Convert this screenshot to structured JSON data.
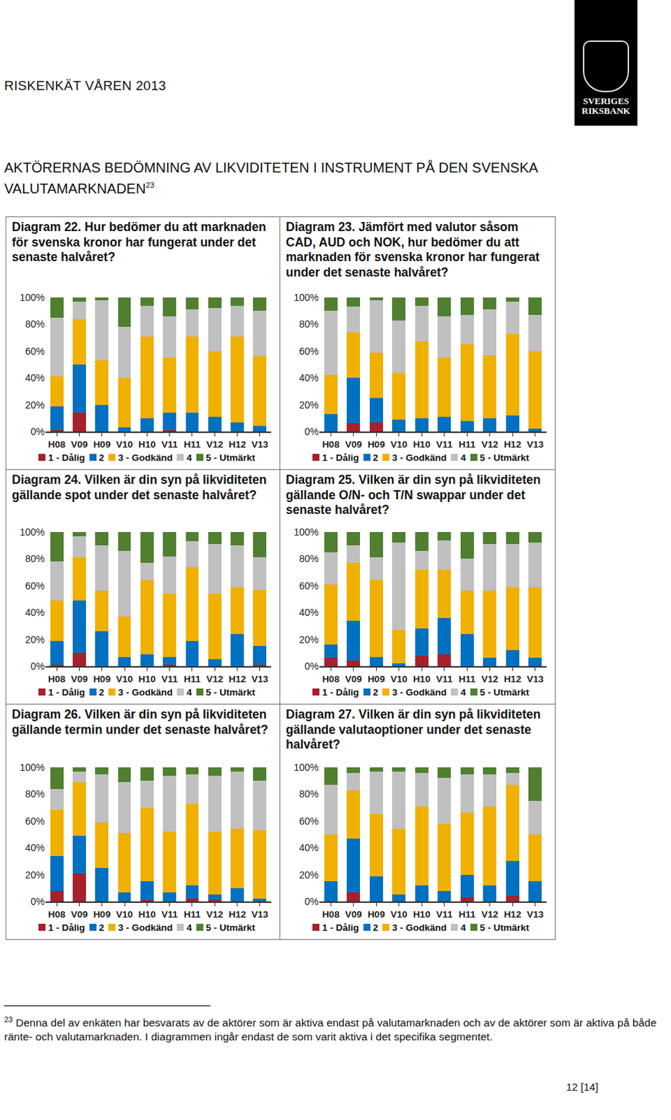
{
  "page": {
    "header": "RISKENKÄT VÅREN 2013",
    "logo": [
      "SVERIGES",
      "RIKSBANK"
    ],
    "section_title": "AKTÖRERNAS BEDÖMNING AV LIKVIDITETEN I INSTRUMENT PÅ DEN SVENSKA VALUTAMARKNADEN",
    "section_note_ref": "23",
    "footnote": {
      "ref": "23",
      "text": "Denna del av enkäten har besvarats av de aktörer som är aktiva endast på valutamarknaden och av de aktörer som är aktiva på både ränte- och valutamarknaden. I diagrammen ingår endast de som varit aktiva i det specifika segmentet."
    },
    "page_number": "12 [14]"
  },
  "chart_data": [
    {
      "type": "bar",
      "stacked": true,
      "grid": false,
      "legend": "bottom",
      "title": "Diagram 22. Hur bedömer du att marknaden för svenska kronor har fungerat under det senaste halvåret?",
      "categories": [
        "H08",
        "V09",
        "H09",
        "V10",
        "H10",
        "V11",
        "H11",
        "V12",
        "H12",
        "V13"
      ],
      "ylim": [
        0,
        100
      ],
      "yticks": [
        {
          "value": 0,
          "label": "0%"
        },
        {
          "value": 20,
          "label": "20%"
        },
        {
          "value": 40,
          "label": "40%"
        },
        {
          "value": 60,
          "label": "60%"
        },
        {
          "value": 80,
          "label": "80%"
        },
        {
          "value": 100,
          "label": "100%"
        }
      ],
      "series": [
        {
          "name": "1 - Dålig",
          "color": "#a6212b",
          "values": [
            1,
            14,
            0,
            0,
            0,
            1,
            0,
            0,
            0,
            0
          ]
        },
        {
          "name": "2",
          "color": "#0070c0",
          "values": [
            18,
            36,
            20,
            3,
            10,
            13,
            14,
            11,
            7,
            4
          ]
        },
        {
          "name": "3 - Godkänd",
          "color": "#f0b000",
          "values": [
            22,
            34,
            33,
            37,
            61,
            41,
            57,
            49,
            64,
            52
          ]
        },
        {
          "name": "4",
          "color": "#c0c0c0",
          "values": [
            44,
            13,
            45,
            38,
            23,
            31,
            20,
            32,
            23,
            34
          ]
        },
        {
          "name": "5 - Utmärkt",
          "color": "#4f7f2f",
          "values": [
            15,
            3,
            2,
            22,
            6,
            14,
            9,
            8,
            6,
            10
          ]
        }
      ]
    },
    {
      "type": "bar",
      "stacked": true,
      "grid": false,
      "legend": "bottom",
      "title": "Diagram 23. Jämfört med valutor såsom CAD, AUD och NOK, hur bedömer du att marknaden för svenska kronor har fungerat under det senaste halvåret?",
      "categories": [
        "H08",
        "V09",
        "H09",
        "V10",
        "H10",
        "V11",
        "H11",
        "V12",
        "H12",
        "V13"
      ],
      "ylim": [
        0,
        100
      ],
      "yticks": [
        {
          "value": 0,
          "label": "0%"
        },
        {
          "value": 20,
          "label": "20%"
        },
        {
          "value": 40,
          "label": "40%"
        },
        {
          "value": 60,
          "label": "60%"
        },
        {
          "value": 80,
          "label": "80%"
        },
        {
          "value": 100,
          "label": "100%"
        }
      ],
      "series": [
        {
          "name": "1 - Dålig",
          "color": "#a6212b",
          "values": [
            0,
            6,
            7,
            0,
            0,
            0,
            0,
            0,
            0,
            0
          ]
        },
        {
          "name": "2",
          "color": "#0070c0",
          "values": [
            13,
            34,
            18,
            9,
            10,
            11,
            8,
            10,
            12,
            2
          ]
        },
        {
          "name": "3 - Godkänd",
          "color": "#f0b000",
          "values": [
            29,
            34,
            34,
            35,
            57,
            44,
            57,
            47,
            61,
            58
          ]
        },
        {
          "name": "4",
          "color": "#c0c0c0",
          "values": [
            48,
            19,
            39,
            39,
            27,
            31,
            22,
            34,
            24,
            27
          ]
        },
        {
          "name": "5 - Utmärkt",
          "color": "#4f7f2f",
          "values": [
            10,
            7,
            2,
            17,
            6,
            14,
            13,
            9,
            3,
            13
          ]
        }
      ]
    },
    {
      "type": "bar",
      "stacked": true,
      "grid": false,
      "legend": "bottom",
      "title": "Diagram 24. Vilken är din syn på likviditeten gällande spot under det senaste halvåret?",
      "categories": [
        "H08",
        "V09",
        "H09",
        "V10",
        "H10",
        "V11",
        "H11",
        "V12",
        "H12",
        "V13"
      ],
      "ylim": [
        0,
        100
      ],
      "yticks": [
        {
          "value": 0,
          "label": "0%"
        },
        {
          "value": 20,
          "label": "20%"
        },
        {
          "value": 40,
          "label": "40%"
        },
        {
          "value": 60,
          "label": "60%"
        },
        {
          "value": 80,
          "label": "80%"
        },
        {
          "value": 100,
          "label": "100%"
        }
      ],
      "series": [
        {
          "name": "1 - Dålig",
          "color": "#a6212b",
          "values": [
            1,
            10,
            0,
            0,
            0,
            1,
            0,
            0,
            0,
            1
          ]
        },
        {
          "name": "2",
          "color": "#0070c0",
          "values": [
            18,
            39,
            26,
            7,
            9,
            6,
            19,
            5,
            24,
            14
          ]
        },
        {
          "name": "3 - Godkänd",
          "color": "#f0b000",
          "values": [
            30,
            32,
            30,
            30,
            55,
            47,
            55,
            49,
            35,
            42
          ]
        },
        {
          "name": "4",
          "color": "#c0c0c0",
          "values": [
            29,
            16,
            34,
            49,
            13,
            28,
            19,
            37,
            31,
            24
          ]
        },
        {
          "name": "5 - Utmärkt",
          "color": "#4f7f2f",
          "values": [
            22,
            3,
            10,
            14,
            23,
            18,
            7,
            9,
            10,
            19
          ]
        }
      ]
    },
    {
      "type": "bar",
      "stacked": true,
      "grid": false,
      "legend": "bottom",
      "title": "Diagram 25. Vilken är din syn på likviditeten gällande O/N- och T/N swappar under det senaste halvåret?",
      "categories": [
        "H08",
        "V09",
        "H09",
        "V10",
        "H10",
        "V11",
        "H11",
        "V12",
        "H12",
        "V13"
      ],
      "ylim": [
        0,
        100
      ],
      "yticks": [
        {
          "value": 0,
          "label": "0%"
        },
        {
          "value": 20,
          "label": "20%"
        },
        {
          "value": 40,
          "label": "40%"
        },
        {
          "value": 60,
          "label": "60%"
        },
        {
          "value": 80,
          "label": "80%"
        },
        {
          "value": 100,
          "label": "100%"
        }
      ],
      "series": [
        {
          "name": "1 - Dålig",
          "color": "#a6212b",
          "values": [
            6,
            4,
            0,
            0,
            8,
            9,
            0,
            0,
            0,
            0
          ]
        },
        {
          "name": "2",
          "color": "#0070c0",
          "values": [
            10,
            30,
            7,
            2,
            20,
            27,
            24,
            6,
            12,
            6
          ]
        },
        {
          "name": "3 - Godkänd",
          "color": "#f0b000",
          "values": [
            45,
            43,
            57,
            25,
            44,
            36,
            32,
            50,
            47,
            53
          ]
        },
        {
          "name": "4",
          "color": "#c0c0c0",
          "values": [
            24,
            13,
            17,
            65,
            14,
            22,
            24,
            35,
            32,
            33
          ]
        },
        {
          "name": "5 - Utmärkt",
          "color": "#4f7f2f",
          "values": [
            15,
            10,
            19,
            8,
            14,
            6,
            20,
            9,
            9,
            8
          ]
        }
      ]
    },
    {
      "type": "bar",
      "stacked": true,
      "grid": false,
      "legend": "bottom",
      "title": "Diagram 26. Vilken är din syn på likviditeten gällande termin under det senaste halvåret?",
      "categories": [
        "H08",
        "V09",
        "H09",
        "V10",
        "H10",
        "V11",
        "H11",
        "V12",
        "H12",
        "V13"
      ],
      "ylim": [
        0,
        100
      ],
      "yticks": [
        {
          "value": 0,
          "label": "0%"
        },
        {
          "value": 20,
          "label": "20%"
        },
        {
          "value": 40,
          "label": "40%"
        },
        {
          "value": 60,
          "label": "60%"
        },
        {
          "value": 80,
          "label": "80%"
        },
        {
          "value": 100,
          "label": "100%"
        }
      ],
      "series": [
        {
          "name": "1 - Dålig",
          "color": "#a6212b",
          "values": [
            8,
            21,
            0,
            0,
            1,
            0,
            2,
            1,
            0,
            0
          ]
        },
        {
          "name": "2",
          "color": "#0070c0",
          "values": [
            26,
            28,
            25,
            7,
            14,
            7,
            10,
            4,
            10,
            2
          ]
        },
        {
          "name": "3 - Godkänd",
          "color": "#f0b000",
          "values": [
            34,
            40,
            34,
            44,
            55,
            45,
            61,
            47,
            44,
            51
          ]
        },
        {
          "name": "4",
          "color": "#c0c0c0",
          "values": [
            16,
            8,
            36,
            38,
            20,
            42,
            22,
            42,
            43,
            37
          ]
        },
        {
          "name": "5 - Utmärkt",
          "color": "#4f7f2f",
          "values": [
            16,
            3,
            5,
            11,
            10,
            6,
            5,
            6,
            3,
            10
          ]
        }
      ]
    },
    {
      "type": "bar",
      "stacked": true,
      "grid": false,
      "legend": "bottom",
      "title": "Diagram 27. Vilken är din syn på likviditeten gällande valutaoptioner under det senaste halvåret?",
      "categories": [
        "H08",
        "V09",
        "H09",
        "V10",
        "H10",
        "V11",
        "H11",
        "V12",
        "H12",
        "V13"
      ],
      "ylim": [
        0,
        100
      ],
      "yticks": [
        {
          "value": 0,
          "label": "0%"
        },
        {
          "value": 20,
          "label": "20%"
        },
        {
          "value": 40,
          "label": "40%"
        },
        {
          "value": 60,
          "label": "60%"
        },
        {
          "value": 80,
          "label": "80%"
        },
        {
          "value": 100,
          "label": "100%"
        }
      ],
      "series": [
        {
          "name": "1 - Dålig",
          "color": "#a6212b",
          "values": [
            0,
            7,
            0,
            0,
            0,
            0,
            3,
            0,
            4,
            0
          ]
        },
        {
          "name": "2",
          "color": "#0070c0",
          "values": [
            15,
            40,
            19,
            5,
            12,
            8,
            17,
            12,
            26,
            15
          ]
        },
        {
          "name": "3 - Godkänd",
          "color": "#f0b000",
          "values": [
            35,
            36,
            46,
            49,
            59,
            50,
            46,
            59,
            57,
            35
          ]
        },
        {
          "name": "4",
          "color": "#c0c0c0",
          "values": [
            37,
            13,
            32,
            43,
            25,
            34,
            29,
            24,
            9,
            25
          ]
        },
        {
          "name": "5 - Utmärkt",
          "color": "#4f7f2f",
          "values": [
            13,
            4,
            3,
            3,
            4,
            8,
            5,
            5,
            4,
            25
          ]
        }
      ]
    }
  ]
}
